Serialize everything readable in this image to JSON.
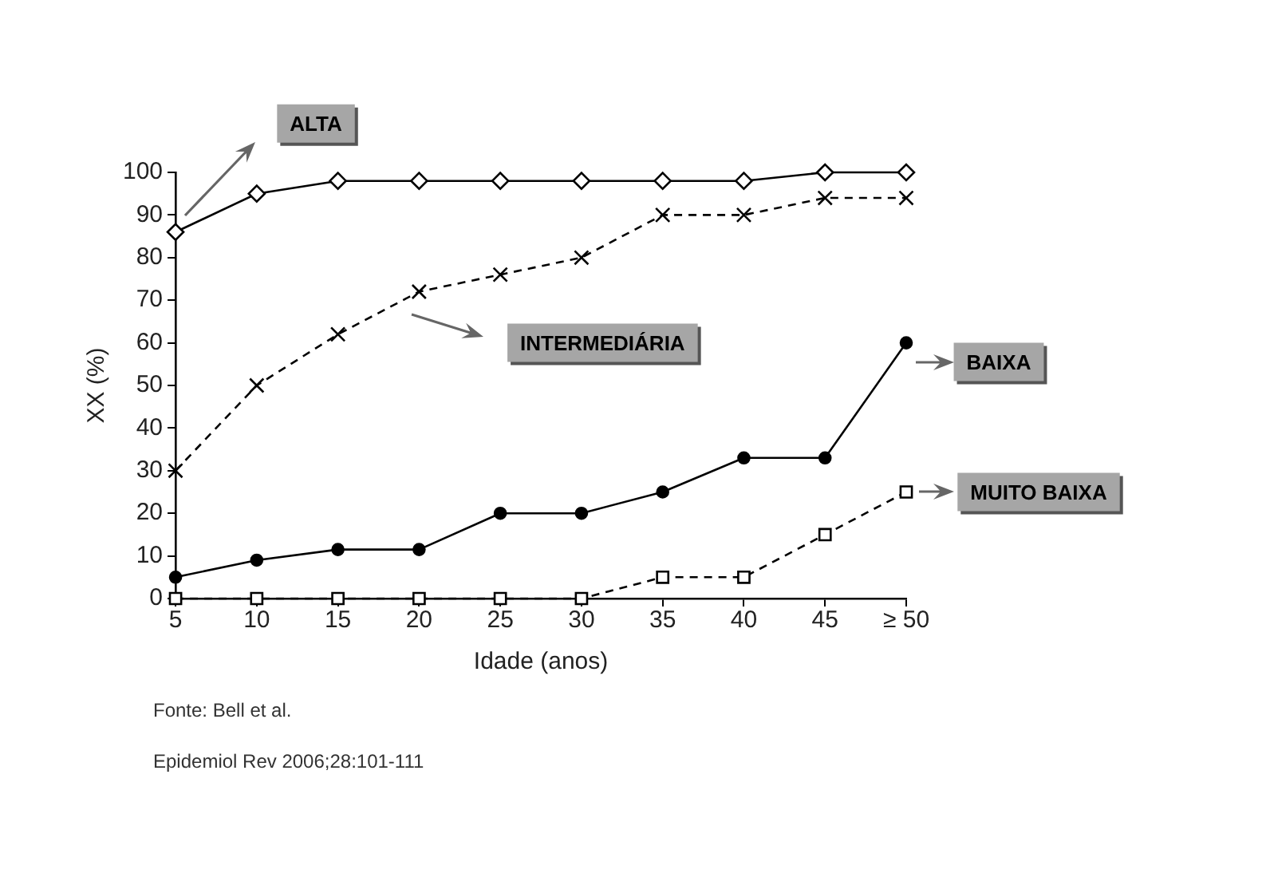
{
  "chart_data": {
    "type": "line",
    "xlabel": "Idade (anos)",
    "ylabel": "XX (%)",
    "categories": [
      "5",
      "10",
      "15",
      "20",
      "25",
      "30",
      "35",
      "40",
      "45",
      "≥ 50"
    ],
    "series": [
      {
        "name": "ALTA",
        "color": "#000000",
        "marker": "diamond",
        "line_style": "solid",
        "values": [
          86,
          95,
          98,
          98,
          98,
          98,
          98,
          98,
          100,
          100
        ]
      },
      {
        "name": "INTERMEDIÁRIA",
        "color": "#000000",
        "marker": "cross",
        "line_style": "dashed",
        "values": [
          30,
          50,
          62,
          72,
          76,
          80,
          90,
          90,
          94,
          94
        ]
      },
      {
        "name": "BAIXA",
        "color": "#000000",
        "marker": "circle",
        "line_style": "solid",
        "values": [
          5,
          9,
          11.5,
          11.5,
          20,
          20,
          25,
          33,
          33,
          60
        ]
      },
      {
        "name": "MUITO BAIXA",
        "color": "#000000",
        "marker": "square",
        "line_style": "dashed",
        "values": [
          0,
          0,
          0,
          0,
          0,
          0,
          5,
          5,
          15,
          25
        ]
      }
    ],
    "ylim": [
      0,
      100
    ],
    "yticks": [
      0,
      10,
      20,
      30,
      40,
      50,
      60,
      70,
      80,
      90,
      100
    ],
    "grid": false,
    "legend": false,
    "annotations": [
      "Fonte: Bell et al.",
      "Epidemiol Rev 2006;28:101-111"
    ]
  }
}
